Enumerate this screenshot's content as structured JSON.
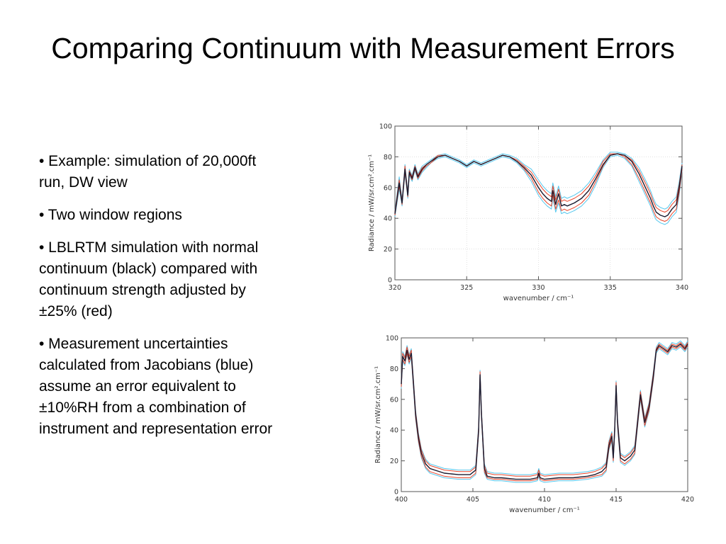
{
  "slide": {
    "title": "Comparing Continuum with Measurement Errors",
    "bullets": [
      "• Example: simulation of 20,000ft run, DW view",
      "• Two window regions",
      "• LBLRTM simulation with normal continuum (black) compared with continuum strength adjusted by ±25% (red)",
      "• Measurement uncertainties calculated from Jacobians (blue) assume an error equivalent to ±10%RH from a combination of instrument and representation error"
    ]
  },
  "colors": {
    "black": "#1a1a2e",
    "red": "#e8442a",
    "blue": "#55c8ee",
    "axis": "#555555",
    "grid": "#cfcfcf"
  },
  "chart_data": [
    {
      "type": "line",
      "xlabel": "wavenumber / cm⁻¹",
      "ylabel": "Radiance / mW/sr.cm².cm⁻¹",
      "xlim": [
        320,
        340
      ],
      "ylim": [
        0,
        100
      ],
      "xticks": [
        320,
        325,
        330,
        335,
        340
      ],
      "yticks": [
        0,
        20,
        40,
        60,
        80,
        100
      ],
      "grid": true,
      "x": [
        320,
        320.3,
        320.5,
        320.7,
        320.9,
        321,
        321.2,
        321.4,
        321.6,
        321.9,
        322.2,
        322.5,
        323,
        323.5,
        324,
        324.5,
        325,
        325.5,
        326,
        326.5,
        327,
        327.5,
        328,
        328.5,
        329,
        329.5,
        330,
        330.3,
        330.6,
        330.9,
        331,
        331.2,
        331.4,
        331.6,
        331.8,
        332,
        332.5,
        333,
        333.5,
        334,
        334.5,
        335,
        335.5,
        336,
        336.5,
        337,
        337.5,
        337.8,
        338,
        338.2,
        338.5,
        338.8,
        339,
        339.3,
        339.6,
        339.8,
        340
      ],
      "series": [
        {
          "values": [
            43,
            63,
            50,
            72,
            55,
            70,
            66,
            73,
            67,
            72,
            75,
            77,
            80,
            81,
            79,
            77,
            74,
            77,
            75,
            77,
            79,
            81,
            80,
            77,
            73,
            68,
            60,
            56,
            53,
            51,
            58,
            49,
            56,
            48,
            49,
            48,
            50,
            53,
            58,
            66,
            75,
            81,
            82,
            81,
            77,
            69,
            59,
            53,
            48,
            44,
            42,
            41,
            42,
            46,
            49,
            60,
            74
          ]
        },
        {
          "values": [
            42,
            61,
            49,
            70,
            54,
            69,
            65,
            72,
            66,
            71,
            74,
            76,
            80,
            81,
            79,
            77,
            74,
            77,
            75,
            77,
            79,
            81,
            80,
            77,
            72,
            66,
            57,
            53,
            50,
            48,
            55,
            46,
            52,
            45,
            46,
            45,
            47,
            50,
            55,
            64,
            74,
            81,
            82,
            80,
            75,
            66,
            56,
            50,
            45,
            41,
            39,
            38,
            39,
            43,
            46,
            57,
            72
          ]
        },
        {
          "values": [
            44,
            65,
            51,
            74,
            56,
            71,
            67,
            74,
            68,
            73,
            75,
            77,
            81,
            81,
            79,
            77,
            74,
            77,
            75,
            77,
            79,
            81,
            80,
            78,
            74,
            70,
            63,
            59,
            56,
            54,
            61,
            52,
            59,
            51,
            52,
            51,
            53,
            56,
            61,
            68,
            77,
            82,
            82,
            81,
            78,
            71,
            62,
            56,
            51,
            47,
            45,
            44,
            45,
            49,
            52,
            62,
            75
          ]
        },
        {
          "values": [
            41,
            59,
            48,
            69,
            53,
            68,
            64,
            71,
            65,
            70,
            73,
            76,
            79,
            80,
            78,
            76,
            73,
            76,
            74,
            76,
            78,
            80,
            79,
            76,
            71,
            64,
            55,
            51,
            48,
            46,
            53,
            44,
            50,
            43,
            44,
            43,
            45,
            48,
            53,
            62,
            73,
            80,
            81,
            79,
            74,
            64,
            54,
            48,
            43,
            39,
            37,
            36,
            37,
            41,
            44,
            55,
            71
          ]
        },
        {
          "values": [
            45,
            67,
            52,
            75,
            57,
            72,
            68,
            75,
            69,
            74,
            76,
            78,
            81,
            82,
            80,
            78,
            75,
            78,
            76,
            78,
            80,
            82,
            81,
            79,
            75,
            72,
            65,
            61,
            58,
            56,
            63,
            54,
            61,
            53,
            54,
            53,
            55,
            58,
            63,
            70,
            78,
            83,
            83,
            82,
            79,
            73,
            64,
            58,
            53,
            49,
            47,
            46,
            47,
            51,
            54,
            64,
            76
          ]
        }
      ]
    },
    {
      "type": "line",
      "xlabel": "wavenumber / cm⁻¹",
      "ylabel": "Radiance / mW/sr.cm².cm⁻¹",
      "xlim": [
        400,
        420
      ],
      "ylim": [
        0,
        100
      ],
      "xticks": [
        400,
        405,
        410,
        415,
        420
      ],
      "yticks": [
        0,
        20,
        40,
        60,
        80,
        100
      ],
      "grid": false,
      "x": [
        400,
        400.1,
        400.25,
        400.4,
        400.55,
        400.7,
        400.85,
        401,
        401.2,
        401.4,
        401.7,
        402,
        403,
        404,
        404.8,
        405.2,
        405.4,
        405.5,
        405.6,
        405.8,
        406,
        406.5,
        407,
        408,
        409,
        409.5,
        409.6,
        409.7,
        410,
        411,
        412,
        413,
        413.5,
        414,
        414.3,
        414.5,
        414.7,
        414.8,
        414.9,
        415,
        415.1,
        415.3,
        415.6,
        416,
        416.3,
        416.5,
        416.7,
        417,
        417.3,
        417.6,
        417.8,
        418,
        418.3,
        418.6,
        418.9,
        419.2,
        419.5,
        419.8,
        420
      ],
      "series": [
        {
          "values": [
            70,
            88,
            85,
            92,
            86,
            90,
            70,
            50,
            35,
            25,
            18,
            15,
            12,
            11,
            11,
            14,
            40,
            76,
            50,
            15,
            10,
            9,
            9,
            8,
            8,
            9,
            12,
            9,
            8,
            9,
            9,
            10,
            11,
            13,
            16,
            30,
            36,
            22,
            40,
            69,
            45,
            22,
            20,
            23,
            27,
            45,
            63,
            45,
            55,
            75,
            92,
            95,
            93,
            91,
            95,
            94,
            96,
            93,
            96
          ]
        },
        {
          "values": [
            68,
            86,
            83,
            90,
            84,
            88,
            68,
            48,
            33,
            23,
            16,
            13,
            10,
            9,
            9,
            12,
            38,
            74,
            48,
            13,
            9,
            8,
            8,
            7,
            7,
            8,
            11,
            8,
            7,
            8,
            8,
            9,
            10,
            11,
            14,
            28,
            34,
            20,
            38,
            67,
            43,
            20,
            18,
            21,
            25,
            43,
            61,
            43,
            53,
            73,
            91,
            94,
            92,
            90,
            94,
            93,
            95,
            92,
            95
          ]
        },
        {
          "values": [
            72,
            90,
            87,
            94,
            88,
            92,
            72,
            52,
            37,
            27,
            20,
            17,
            14,
            13,
            13,
            16,
            42,
            78,
            52,
            17,
            12,
            11,
            11,
            10,
            10,
            11,
            14,
            11,
            10,
            11,
            11,
            12,
            13,
            15,
            18,
            32,
            38,
            24,
            42,
            71,
            47,
            24,
            22,
            25,
            29,
            47,
            65,
            47,
            57,
            77,
            93,
            96,
            94,
            92,
            96,
            95,
            97,
            94,
            97
          ]
        },
        {
          "values": [
            67,
            85,
            82,
            89,
            83,
            87,
            67,
            47,
            32,
            22,
            15,
            12,
            9,
            8,
            8,
            11,
            37,
            73,
            47,
            12,
            8,
            7,
            7,
            6,
            6,
            7,
            10,
            7,
            6,
            7,
            7,
            8,
            9,
            10,
            13,
            27,
            33,
            19,
            37,
            66,
            42,
            19,
            17,
            20,
            24,
            42,
            60,
            42,
            52,
            72,
            90,
            93,
            91,
            89,
            93,
            92,
            94,
            91,
            94
          ]
        },
        {
          "values": [
            73,
            91,
            88,
            95,
            89,
            93,
            73,
            53,
            38,
            28,
            21,
            18,
            15,
            14,
            14,
            17,
            43,
            79,
            53,
            18,
            13,
            12,
            12,
            11,
            11,
            12,
            15,
            12,
            11,
            12,
            12,
            13,
            14,
            16,
            19,
            33,
            39,
            25,
            43,
            72,
            48,
            25,
            23,
            26,
            30,
            48,
            66,
            48,
            58,
            78,
            94,
            97,
            95,
            93,
            97,
            96,
            98,
            95,
            98
          ]
        }
      ]
    }
  ]
}
